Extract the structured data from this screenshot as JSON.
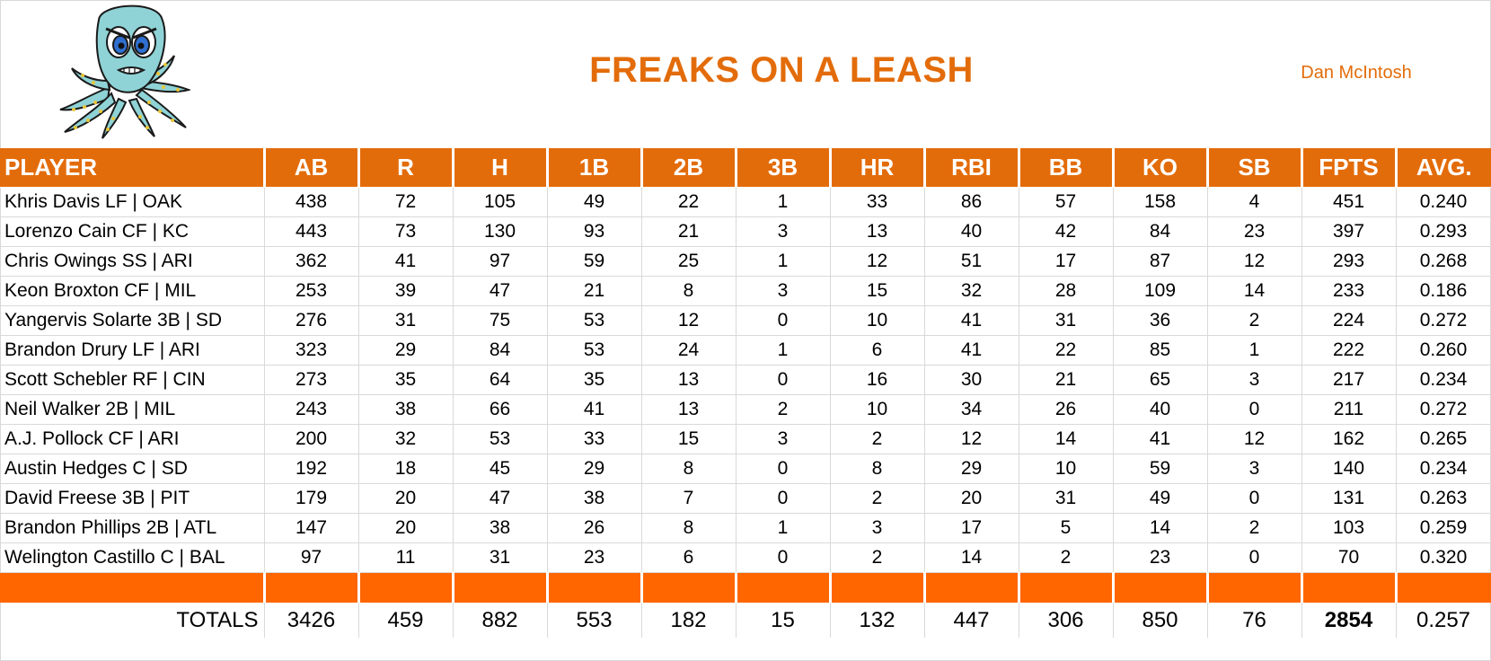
{
  "header": {
    "team_name": "FREAKS ON A LEASH",
    "owner": "Dan McIntosh"
  },
  "colors": {
    "accent": "#E36C0A",
    "separator": "#FF6600"
  },
  "mascot_icon": "octopus-mascot-icon",
  "columns": [
    "PLAYER",
    "AB",
    "R",
    "H",
    "1B",
    "2B",
    "3B",
    "HR",
    "RBI",
    "BB",
    "KO",
    "SB",
    "FPTS",
    "AVG."
  ],
  "rows": [
    [
      "Khris Davis LF | OAK",
      "438",
      "72",
      "105",
      "49",
      "22",
      "1",
      "33",
      "86",
      "57",
      "158",
      "4",
      "451",
      "0.240"
    ],
    [
      "Lorenzo Cain CF | KC",
      "443",
      "73",
      "130",
      "93",
      "21",
      "3",
      "13",
      "40",
      "42",
      "84",
      "23",
      "397",
      "0.293"
    ],
    [
      "Chris Owings SS | ARI",
      "362",
      "41",
      "97",
      "59",
      "25",
      "1",
      "12",
      "51",
      "17",
      "87",
      "12",
      "293",
      "0.268"
    ],
    [
      "Keon Broxton CF | MIL",
      "253",
      "39",
      "47",
      "21",
      "8",
      "3",
      "15",
      "32",
      "28",
      "109",
      "14",
      "233",
      "0.186"
    ],
    [
      "Yangervis Solarte 3B | SD",
      "276",
      "31",
      "75",
      "53",
      "12",
      "0",
      "10",
      "41",
      "31",
      "36",
      "2",
      "224",
      "0.272"
    ],
    [
      "Brandon Drury LF | ARI",
      "323",
      "29",
      "84",
      "53",
      "24",
      "1",
      "6",
      "41",
      "22",
      "85",
      "1",
      "222",
      "0.260"
    ],
    [
      "Scott Schebler RF | CIN",
      "273",
      "35",
      "64",
      "35",
      "13",
      "0",
      "16",
      "30",
      "21",
      "65",
      "3",
      "217",
      "0.234"
    ],
    [
      "Neil Walker 2B | MIL",
      "243",
      "38",
      "66",
      "41",
      "13",
      "2",
      "10",
      "34",
      "26",
      "40",
      "0",
      "211",
      "0.272"
    ],
    [
      "A.J. Pollock CF | ARI",
      "200",
      "32",
      "53",
      "33",
      "15",
      "3",
      "2",
      "12",
      "14",
      "41",
      "12",
      "162",
      "0.265"
    ],
    [
      "Austin Hedges C | SD",
      "192",
      "18",
      "45",
      "29",
      "8",
      "0",
      "8",
      "29",
      "10",
      "59",
      "3",
      "140",
      "0.234"
    ],
    [
      "David Freese 3B | PIT",
      "179",
      "20",
      "47",
      "38",
      "7",
      "0",
      "2",
      "20",
      "31",
      "49",
      "0",
      "131",
      "0.263"
    ],
    [
      "Brandon Phillips 2B | ATL",
      "147",
      "20",
      "38",
      "26",
      "8",
      "1",
      "3",
      "17",
      "5",
      "14",
      "2",
      "103",
      "0.259"
    ],
    [
      "Welington Castillo C | BAL",
      "97",
      "11",
      "31",
      "23",
      "6",
      "0",
      "2",
      "14",
      "2",
      "23",
      "0",
      "70",
      "0.320"
    ]
  ],
  "totals": [
    "TOTALS",
    "3426",
    "459",
    "882",
    "553",
    "182",
    "15",
    "132",
    "447",
    "306",
    "850",
    "76",
    "2854",
    "0.257"
  ]
}
